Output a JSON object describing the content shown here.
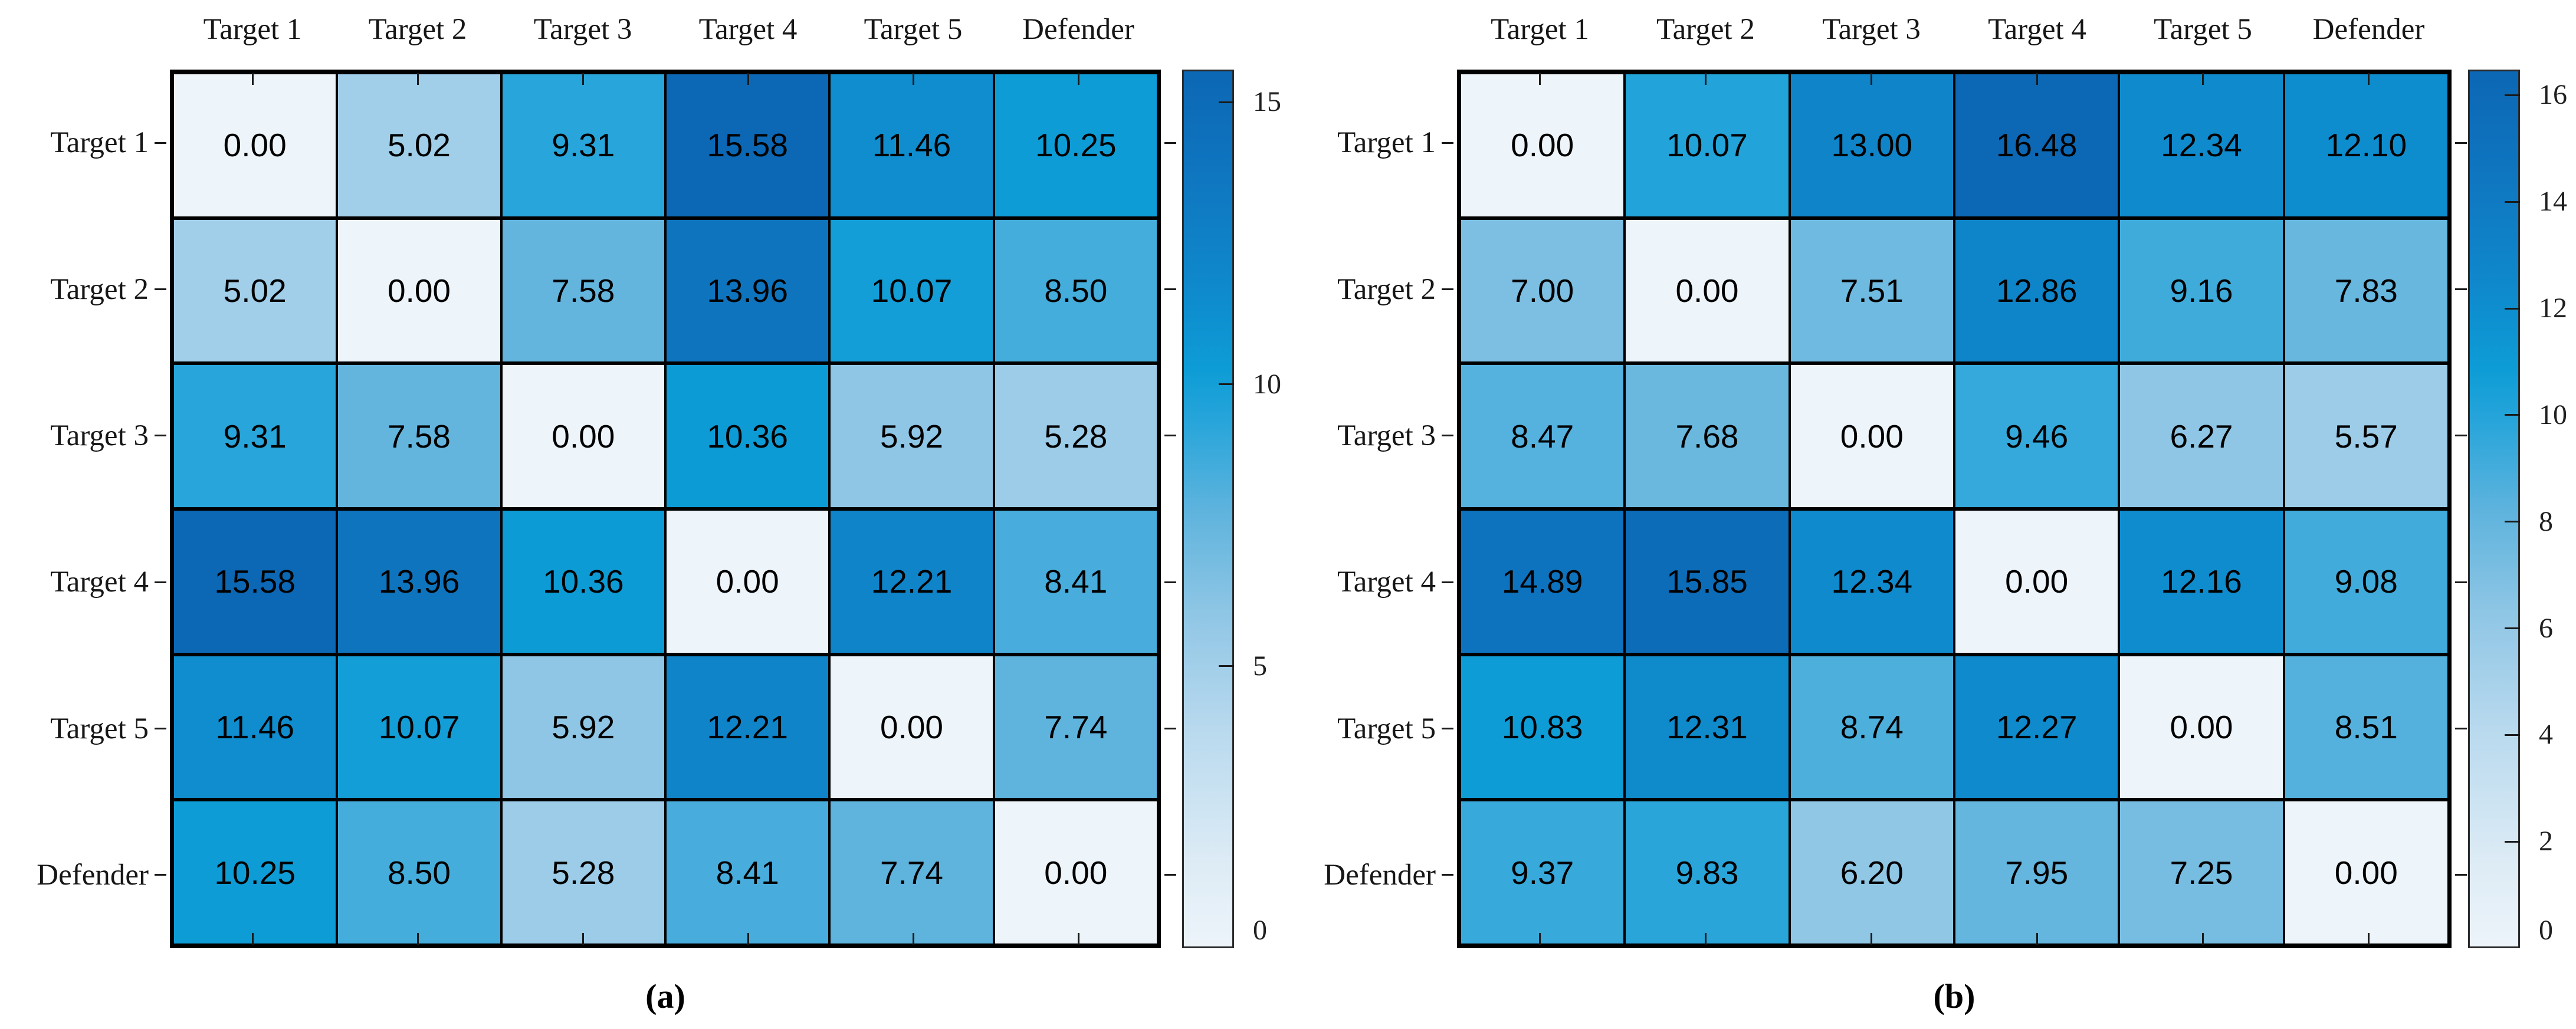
{
  "figure": {
    "background": "#ffffff",
    "text_color": "#161616",
    "grid_line_color": "#000000"
  },
  "colormap": {
    "stops": [
      {
        "t": 0.0,
        "c": "#edf4fa"
      },
      {
        "t": 0.1,
        "c": "#dcebf5"
      },
      {
        "t": 0.25,
        "c": "#b8d9ee"
      },
      {
        "t": 0.38,
        "c": "#8fc6e5"
      },
      {
        "t": 0.5,
        "c": "#5db3dd"
      },
      {
        "t": 0.6,
        "c": "#27a5da"
      },
      {
        "t": 0.66,
        "c": "#0d9cd6"
      },
      {
        "t": 0.76,
        "c": "#0f88cb"
      },
      {
        "t": 0.88,
        "c": "#0f76c0"
      },
      {
        "t": 1.0,
        "c": "#0c67b4"
      }
    ]
  },
  "chart_data": [
    {
      "type": "heatmap",
      "caption": "(a)",
      "x_axis_side": "top",
      "colorbar_position": "right",
      "x_labels": [
        "Target 1",
        "Target 2",
        "Target 3",
        "Target 4",
        "Target 5",
        "Defender"
      ],
      "y_labels": [
        "Target 1",
        "Target 2",
        "Target 3",
        "Target 4",
        "Target 5",
        "Defender"
      ],
      "values": [
        [
          0.0,
          5.02,
          9.31,
          15.58,
          11.46,
          10.25
        ],
        [
          5.02,
          0.0,
          7.58,
          13.96,
          10.07,
          8.5
        ],
        [
          9.31,
          7.58,
          0.0,
          10.36,
          5.92,
          5.28
        ],
        [
          15.58,
          13.96,
          10.36,
          0.0,
          12.21,
          8.41
        ],
        [
          11.46,
          10.07,
          5.92,
          12.21,
          0.0,
          7.74
        ],
        [
          10.25,
          8.5,
          5.28,
          8.41,
          7.74,
          0.0
        ]
      ],
      "vmin": 0,
      "vmax": 15.58,
      "colorbar_ticks": [
        0,
        5,
        10,
        15
      ],
      "value_format": "2dp"
    },
    {
      "type": "heatmap",
      "caption": "(b)",
      "x_axis_side": "top",
      "colorbar_position": "right",
      "x_labels": [
        "Target 1",
        "Target 2",
        "Target 3",
        "Target 4",
        "Target 5",
        "Defender"
      ],
      "y_labels": [
        "Target 1",
        "Target 2",
        "Target 3",
        "Target 4",
        "Target 5",
        "Defender"
      ],
      "values": [
        [
          0.0,
          10.07,
          13.0,
          16.48,
          12.34,
          12.1
        ],
        [
          7.0,
          0.0,
          7.51,
          12.86,
          9.16,
          7.83
        ],
        [
          8.47,
          7.68,
          0.0,
          9.46,
          6.27,
          5.57
        ],
        [
          14.89,
          15.85,
          12.34,
          0.0,
          12.16,
          9.08
        ],
        [
          10.83,
          12.31,
          8.74,
          12.27,
          0.0,
          8.51
        ],
        [
          9.37,
          9.83,
          6.2,
          7.95,
          7.25,
          0.0
        ]
      ],
      "vmin": 0,
      "vmax": 16.48,
      "colorbar_ticks": [
        0,
        2,
        4,
        6,
        8,
        10,
        12,
        14,
        16
      ],
      "value_format": "2dp"
    }
  ]
}
